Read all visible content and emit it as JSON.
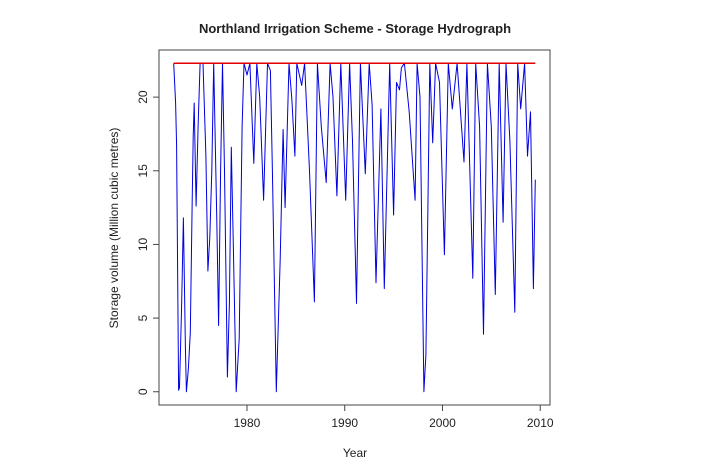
{
  "chart_data": {
    "type": "line",
    "title": "Northland Irrigation Scheme - Storage Hydrograph",
    "xlabel": "Year",
    "ylabel": "Storage volume (Million cubic metres)",
    "xlim": [
      1971.0,
      2011.0
    ],
    "ylim": [
      -0.9,
      23.2
    ],
    "xticks": [
      1980,
      1990,
      2000,
      2010
    ],
    "yticks": [
      0,
      5,
      10,
      15,
      20
    ],
    "grid": false,
    "capacity_line": {
      "value": 22.3,
      "x": [
        1972.5,
        2009.5
      ],
      "color": "#e00000"
    },
    "series": [
      {
        "color": "#0000e0",
        "x": [
          1972.5,
          1972.7,
          1972.8,
          1973.0,
          1973.1,
          1973.3,
          1973.5,
          1973.7,
          1973.8,
          1974.0,
          1974.2,
          1974.4,
          1974.5,
          1974.6,
          1974.8,
          1975.0,
          1975.2,
          1975.5,
          1975.8,
          1976.0,
          1976.2,
          1976.4,
          1976.6,
          1976.9,
          1977.1,
          1977.3,
          1977.5,
          1977.7,
          1978.0,
          1978.2,
          1978.4,
          1978.6,
          1978.9,
          1979.2,
          1979.5,
          1979.7,
          1980.0,
          1980.3,
          1980.7,
          1981.0,
          1981.3,
          1981.7,
          1982.1,
          1982.4,
          1982.6,
          1983.0,
          1983.4,
          1983.7,
          1983.9,
          1984.3,
          1984.6,
          1984.9,
          1985.1,
          1985.6,
          1985.9,
          1986.4,
          1986.9,
          1987.2,
          1987.6,
          1988.1,
          1988.5,
          1988.8,
          1989.2,
          1989.6,
          1990.1,
          1990.5,
          1990.8,
          1991.2,
          1991.6,
          1992.1,
          1992.5,
          1992.8,
          1993.2,
          1993.7,
          1994.05,
          1994.6,
          1995.0,
          1995.3,
          1995.6,
          1995.8,
          1996.1,
          1996.6,
          1997.2,
          1997.4,
          1997.7,
          1998.1,
          1998.3,
          1998.5,
          1998.7,
          1999.0,
          1999.3,
          1999.7,
          2000.2,
          2000.6,
          2001.0,
          2001.5,
          2002.2,
          2002.5,
          2003.1,
          2003.4,
          2003.8,
          2004.2,
          2004.6,
          2005.0,
          2005.4,
          2005.8,
          2006.2,
          2006.5,
          2006.9,
          2007.4,
          2007.7,
          2008.0,
          2008.4,
          2008.7,
          2009.0,
          2009.3,
          2009.5
        ],
        "y": [
          22.3,
          19.6,
          16.7,
          0.1,
          0.3,
          5.5,
          11.8,
          3.0,
          0.0,
          1.5,
          4.0,
          13.0,
          17.3,
          19.6,
          12.6,
          18.0,
          22.3,
          22.3,
          16.0,
          8.2,
          10.5,
          15.0,
          22.3,
          12.0,
          4.5,
          15.0,
          22.3,
          15.0,
          1.0,
          6.0,
          16.6,
          10.0,
          0.0,
          3.6,
          18.0,
          22.3,
          21.5,
          22.3,
          15.5,
          22.3,
          20.0,
          13.0,
          22.3,
          21.8,
          15.0,
          0.0,
          9.0,
          17.8,
          12.5,
          22.3,
          19.8,
          16.0,
          22.3,
          20.8,
          22.3,
          15.0,
          6.1,
          22.3,
          18.0,
          14.2,
          22.3,
          20.0,
          13.3,
          22.3,
          13.0,
          22.3,
          17.0,
          6.0,
          22.3,
          14.8,
          22.3,
          19.5,
          7.4,
          19.2,
          7.0,
          22.3,
          12.0,
          21.0,
          20.5,
          22.0,
          22.3,
          19.0,
          13.0,
          22.3,
          20.0,
          0.0,
          2.5,
          12.0,
          22.3,
          16.9,
          22.3,
          21.0,
          9.3,
          22.3,
          19.2,
          22.3,
          15.6,
          22.3,
          7.7,
          22.3,
          18.0,
          3.9,
          22.3,
          18.0,
          6.6,
          22.3,
          11.5,
          22.3,
          17.0,
          5.4,
          22.3,
          19.2,
          22.3,
          16.0,
          19.0,
          7.0,
          14.4
        ]
      }
    ]
  }
}
